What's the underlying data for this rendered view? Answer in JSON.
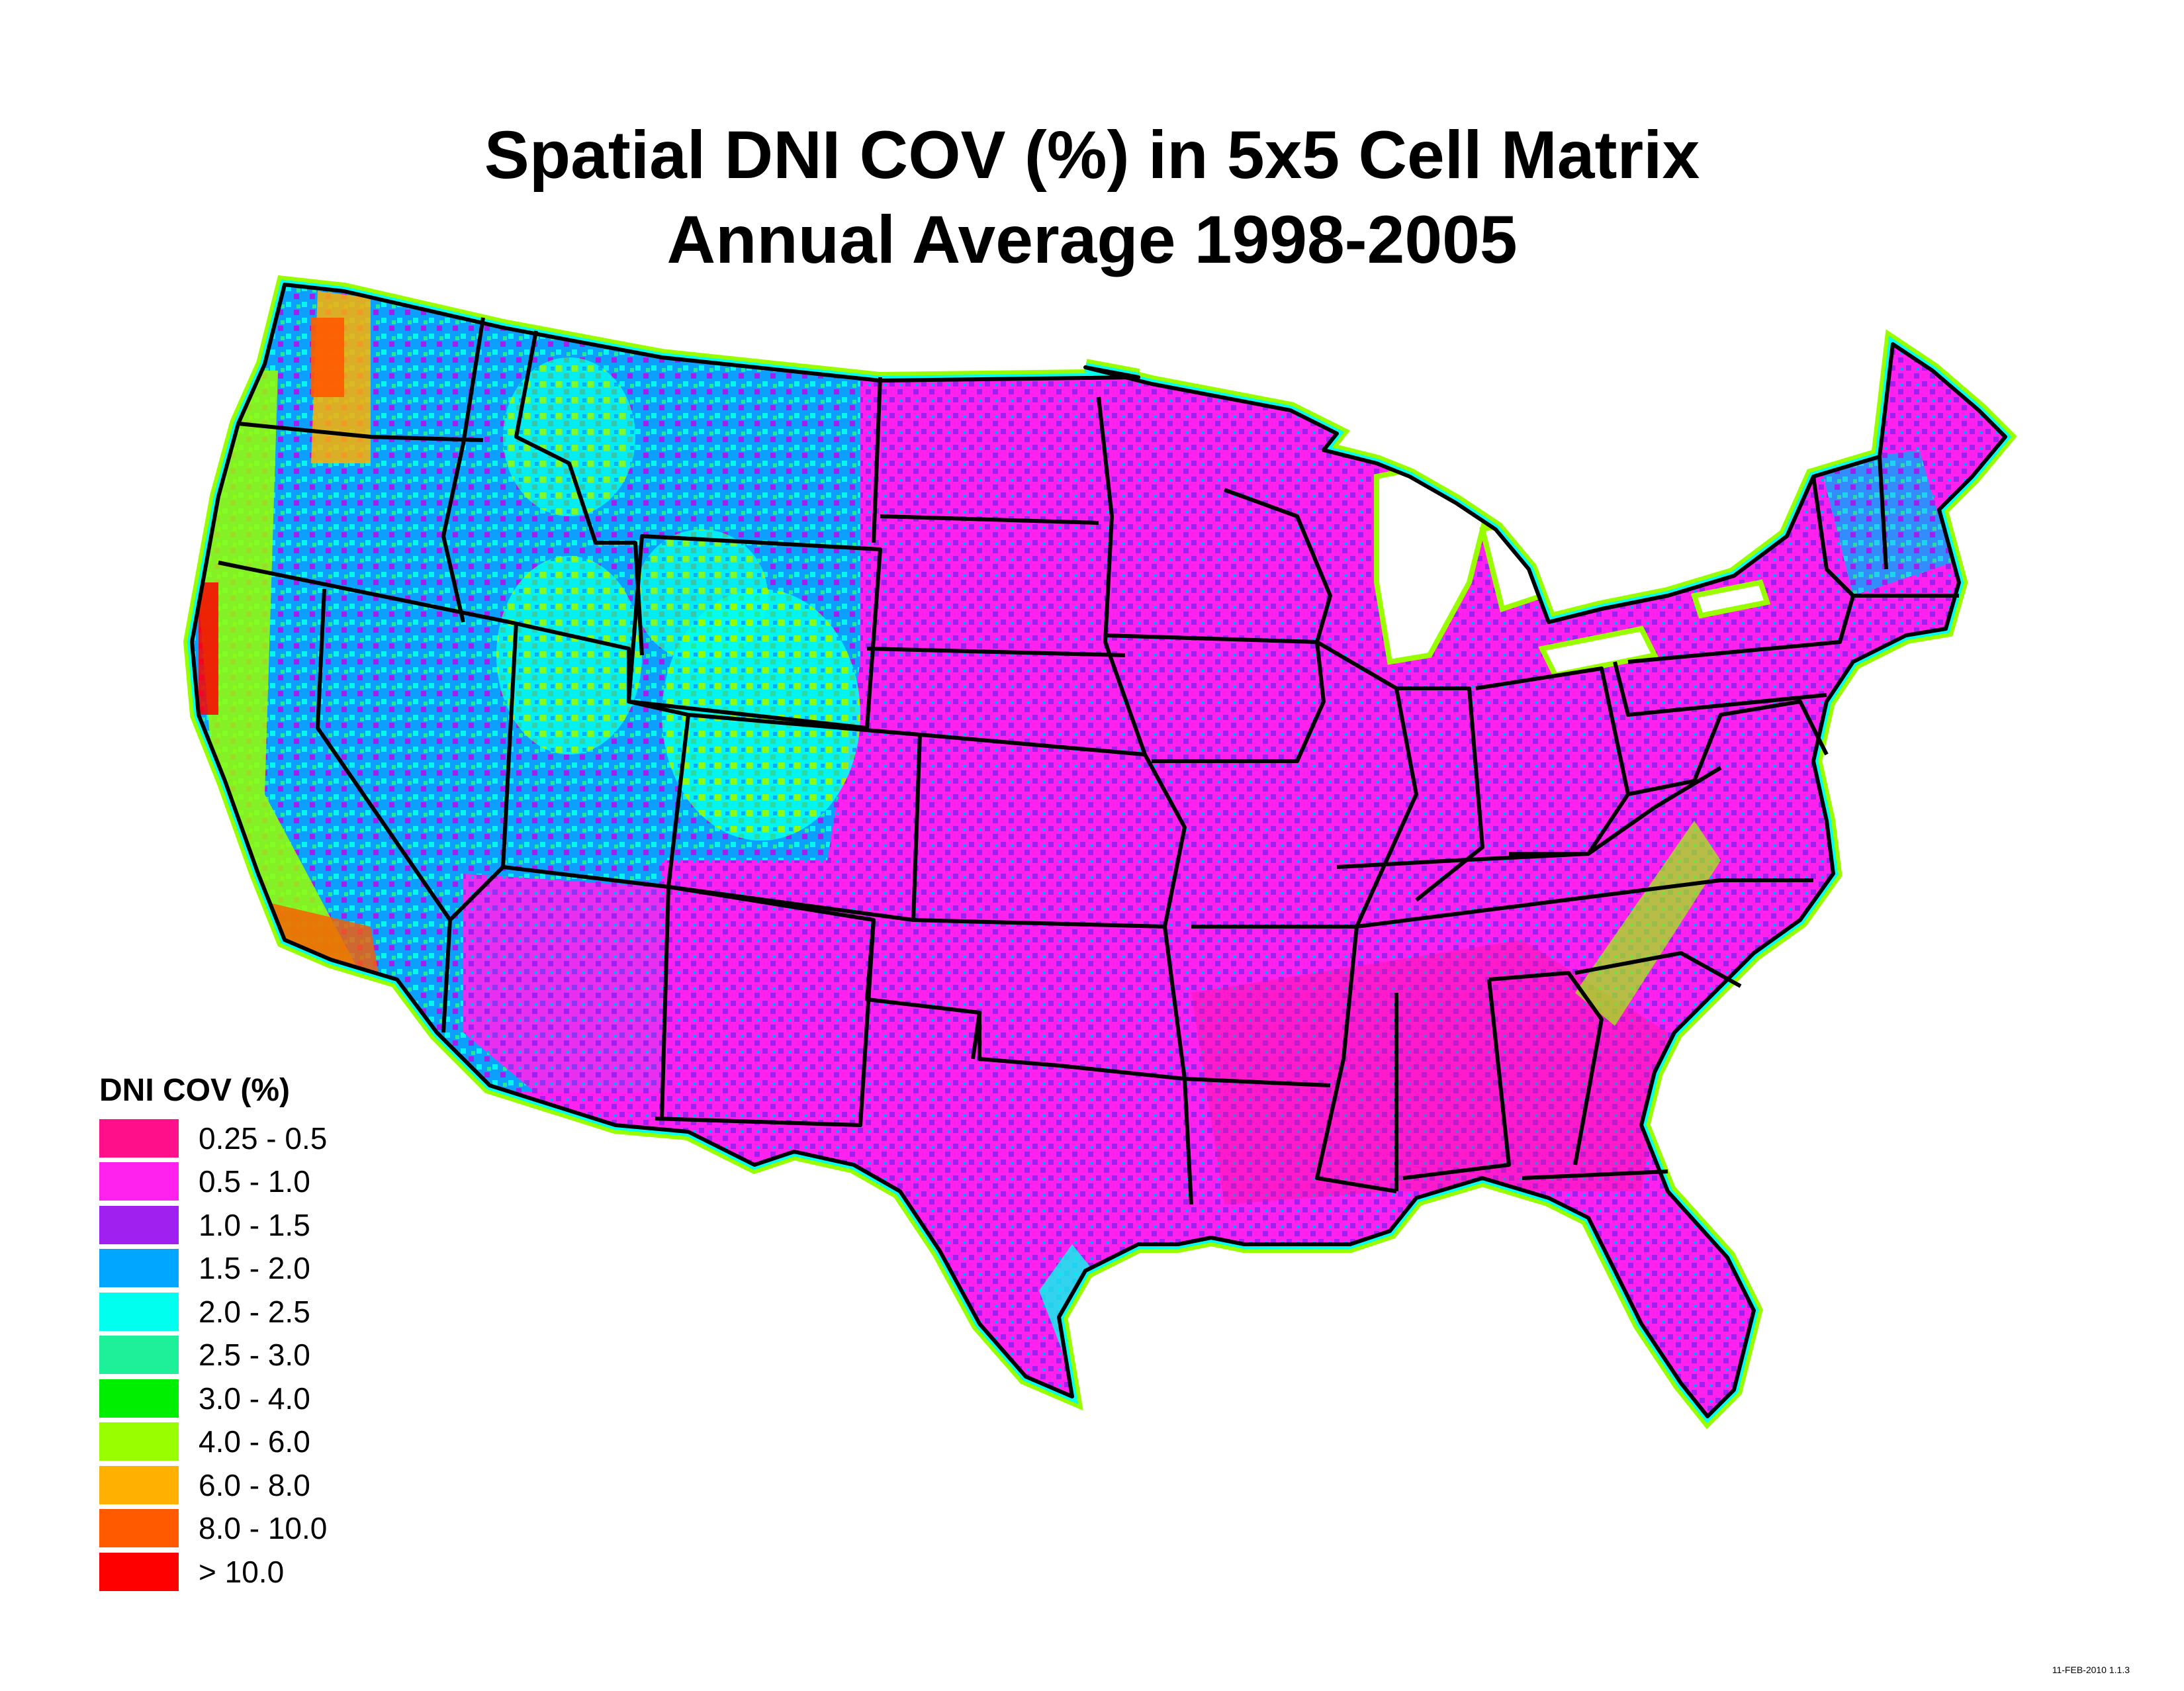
{
  "title": {
    "line1": "Spatial DNI COV (%) in 5x5 Cell Matrix",
    "line2": "Annual Average 1998-2005"
  },
  "legend": {
    "title": "DNI COV (%)",
    "items": [
      {
        "label": "0.25 - 0.5",
        "color": "#ff0f8a"
      },
      {
        "label": "0.5 - 1.0",
        "color": "#ff22ee"
      },
      {
        "label": "1.0 - 1.5",
        "color": "#a020f0"
      },
      {
        "label": "1.5 - 2.0",
        "color": "#00a6ff"
      },
      {
        "label": "2.0 - 2.5",
        "color": "#00ffee"
      },
      {
        "label": "2.5 - 3.0",
        "color": "#1ef09a"
      },
      {
        "label": "3.0 - 4.0",
        "color": "#00ee00"
      },
      {
        "label": "4.0 - 6.0",
        "color": "#99ff00"
      },
      {
        "label": "6.0 - 8.0",
        "color": "#ffb000"
      },
      {
        "label": "8.0 - 10.0",
        "color": "#ff5a00"
      },
      {
        "label": "> 10.0",
        "color": "#ff0000"
      }
    ]
  },
  "stamp": "11-FEB-2010 1.1.3"
}
